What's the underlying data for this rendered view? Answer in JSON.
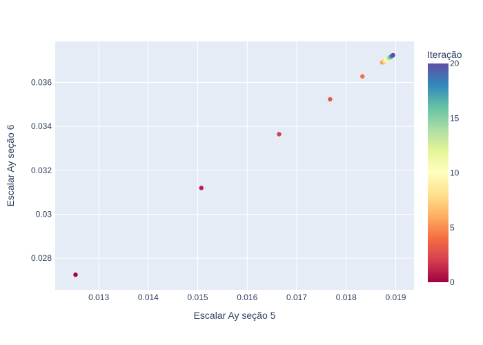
{
  "chart_data": {
    "type": "scatter",
    "title": "",
    "xlabel": "Escalar Ay seção 5",
    "ylabel": "Escalar Ay seção 6",
    "xlim": [
      0.01212,
      0.01937
    ],
    "ylim": [
      0.02656,
      0.03787
    ],
    "xticks": [
      0.013,
      0.014,
      0.015,
      0.016,
      0.017,
      0.018,
      0.019
    ],
    "xtick_labels": [
      "0.013",
      "0.014",
      "0.015",
      "0.016",
      "0.017",
      "0.018",
      "0.019"
    ],
    "yticks": [
      0.028,
      0.03,
      0.032,
      0.034,
      0.036
    ],
    "ytick_labels": [
      "0.028",
      "0.03",
      "0.032",
      "0.034",
      "0.036"
    ],
    "grid": true,
    "colorscale": "Spectral",
    "colorbar": {
      "title": "Iteração",
      "range": [
        0,
        20
      ],
      "ticks": [
        0,
        5,
        10,
        15,
        20
      ],
      "tick_labels": [
        "0",
        "5",
        "10",
        "15",
        "20"
      ]
    },
    "points": [
      {
        "x": 0.012531,
        "y": 0.027247,
        "iter": 0
      },
      {
        "x": 0.015073,
        "y": 0.031198,
        "iter": 1
      },
      {
        "x": 0.016644,
        "y": 0.033645,
        "iter": 2
      },
      {
        "x": 0.017675,
        "y": 0.035234,
        "iter": 3
      },
      {
        "x": 0.018328,
        "y": 0.036276,
        "iter": 4
      },
      {
        "x": 0.01873,
        "y": 0.036915,
        "iter": 5
      },
      {
        "x": 0.01875,
        "y": 0.036935,
        "iter": 6
      },
      {
        "x": 0.01877,
        "y": 0.03696,
        "iter": 7
      },
      {
        "x": 0.01879,
        "y": 0.03699,
        "iter": 8
      },
      {
        "x": 0.018805,
        "y": 0.037015,
        "iter": 9
      },
      {
        "x": 0.01882,
        "y": 0.03704,
        "iter": 10
      },
      {
        "x": 0.018835,
        "y": 0.037065,
        "iter": 11
      },
      {
        "x": 0.01885,
        "y": 0.03709,
        "iter": 12
      },
      {
        "x": 0.018862,
        "y": 0.03711,
        "iter": 13
      },
      {
        "x": 0.018875,
        "y": 0.03713,
        "iter": 14
      },
      {
        "x": 0.018888,
        "y": 0.03715,
        "iter": 15
      },
      {
        "x": 0.0189,
        "y": 0.03717,
        "iter": 16
      },
      {
        "x": 0.018912,
        "y": 0.03719,
        "iter": 17
      },
      {
        "x": 0.018924,
        "y": 0.03721,
        "iter": 18
      },
      {
        "x": 0.018936,
        "y": 0.037228,
        "iter": 19
      },
      {
        "x": 0.018948,
        "y": 0.037245,
        "iter": 20
      }
    ]
  },
  "colors": {
    "plot_bg": "#e5ecf6",
    "grid": "#ffffff",
    "text": "#2a3f5f",
    "colorscale_stops": [
      "#9e0142",
      "#d53e4f",
      "#f46d43",
      "#fdae61",
      "#fee08b",
      "#ffffbf",
      "#e6f598",
      "#abdda4",
      "#66c2a5",
      "#3288bd",
      "#5e4fa2"
    ]
  }
}
